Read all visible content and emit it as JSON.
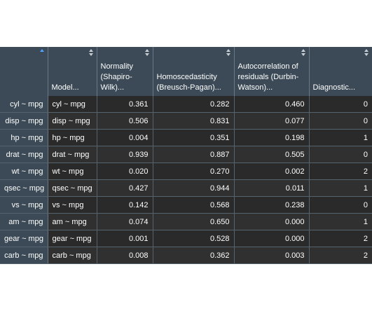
{
  "columns": [
    {
      "label": "",
      "sorted": true
    },
    {
      "label": "Model...",
      "sorted": false
    },
    {
      "label": "Normality (Shapiro-Wilk)...",
      "sorted": false
    },
    {
      "label": "Homoscedasticity (Breusch-Pagan)...",
      "sorted": false
    },
    {
      "label": "Autocorrelation of residuals (Durbin-Watson)...",
      "sorted": false
    },
    {
      "label": "Diagnostic...",
      "sorted": false
    }
  ],
  "rows": [
    {
      "name": "cyl ~ mpg",
      "model": "cyl ~ mpg",
      "normality": "0.361",
      "homosced": "0.282",
      "autocorr": "0.460",
      "diag": "0"
    },
    {
      "name": "disp ~ mpg",
      "model": "disp ~ mpg",
      "normality": "0.506",
      "homosced": "0.831",
      "autocorr": "0.077",
      "diag": "0"
    },
    {
      "name": "hp ~ mpg",
      "model": "hp ~ mpg",
      "normality": "0.004",
      "homosced": "0.351",
      "autocorr": "0.198",
      "diag": "1"
    },
    {
      "name": "drat ~ mpg",
      "model": "drat ~ mpg",
      "normality": "0.939",
      "homosced": "0.887",
      "autocorr": "0.505",
      "diag": "0"
    },
    {
      "name": "wt ~ mpg",
      "model": "wt ~ mpg",
      "normality": "0.020",
      "homosced": "0.270",
      "autocorr": "0.002",
      "diag": "2"
    },
    {
      "name": "qsec ~ mpg",
      "model": "qsec ~ mpg",
      "normality": "0.427",
      "homosced": "0.944",
      "autocorr": "0.011",
      "diag": "1"
    },
    {
      "name": "vs ~ mpg",
      "model": "vs ~ mpg",
      "normality": "0.142",
      "homosced": "0.568",
      "autocorr": "0.238",
      "diag": "0"
    },
    {
      "name": "am ~ mpg",
      "model": "am ~ mpg",
      "normality": "0.074",
      "homosced": "0.650",
      "autocorr": "0.000",
      "diag": "1"
    },
    {
      "name": "gear ~ mpg",
      "model": "gear ~ mpg",
      "normality": "0.001",
      "homosced": "0.528",
      "autocorr": "0.000",
      "diag": "2"
    },
    {
      "name": "carb ~ mpg",
      "model": "carb ~ mpg",
      "normality": "0.008",
      "homosced": "0.362",
      "autocorr": "0.003",
      "diag": "2"
    }
  ]
}
